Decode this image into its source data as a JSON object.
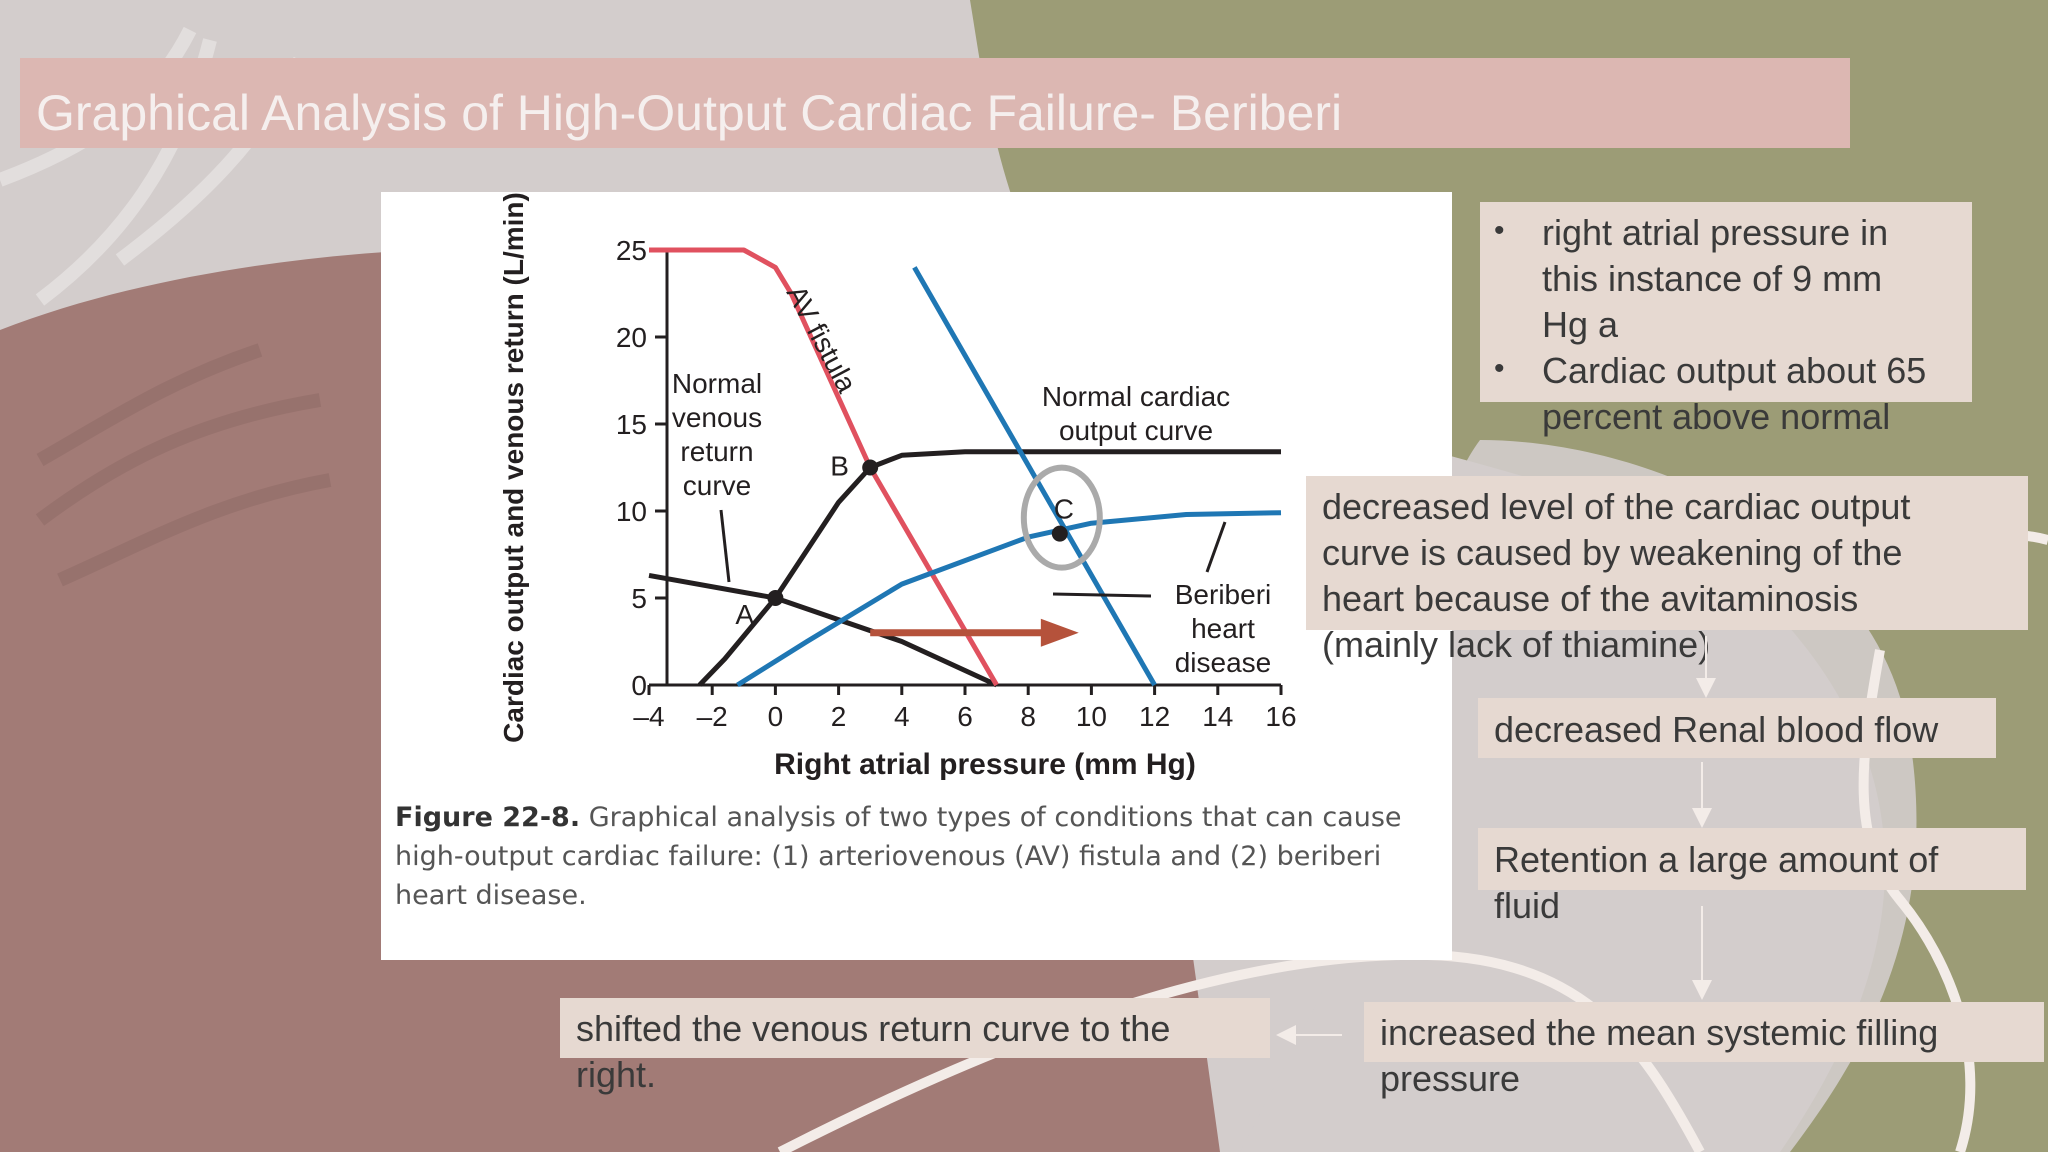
{
  "slide": {
    "title": "Graphical Analysis of High-Output Cardiac Failure- Beriberi",
    "colors": {
      "olive": "#9c9c76",
      "mauve": "#a27b76",
      "title_band": "#dcb7b2",
      "box": "#e6d9d1"
    }
  },
  "figure": {
    "caption_bold": "Figure 22-8.",
    "caption_text": "Graphical analysis of two types of conditions that can cause high-output cardiac failure: (1) arteriovenous (AV) fistula and (2) beriberi heart disease.",
    "annotations": {
      "normal_venous": [
        "Normal",
        "venous",
        "return",
        "curve"
      ],
      "av_fistula": "AV fistula",
      "normal_cardiac": [
        "Normal cardiac",
        "output curve"
      ],
      "beriberi": [
        "Beriberi",
        "heart",
        "disease"
      ],
      "point_a": "A",
      "point_b": "B",
      "point_c": "C"
    }
  },
  "chart_data": {
    "type": "line",
    "title": "",
    "xlabel": "Right atrial pressure (mm Hg)",
    "ylabel": "Cardiac output and venous return (L/min)",
    "xlim": [
      -4,
      16
    ],
    "ylim": [
      0,
      25
    ],
    "x_ticks": [
      "–4",
      "–2",
      "0",
      "2",
      "4",
      "6",
      "8",
      "10",
      "12",
      "14",
      "16"
    ],
    "y_ticks": [
      "0",
      "5",
      "10",
      "15",
      "20",
      "25"
    ],
    "series": [
      {
        "color": "#231f20",
        "points": [
          [
            -2.4,
            0
          ],
          [
            -1.6,
            1.5
          ],
          [
            0,
            5
          ],
          [
            2,
            10.5
          ],
          [
            3,
            12.5
          ],
          [
            4,
            13.2
          ],
          [
            6,
            13.4
          ],
          [
            16,
            13.4
          ]
        ]
      },
      {
        "color": "#231f20",
        "points": [
          [
            -4,
            6.3
          ],
          [
            0,
            5
          ],
          [
            4,
            2.5
          ],
          [
            7,
            0
          ]
        ]
      },
      {
        "color": "#e0515f",
        "points": [
          [
            -4,
            25
          ],
          [
            -1,
            25
          ],
          [
            0,
            24
          ],
          [
            0.5,
            22.5
          ],
          [
            3,
            12.5
          ],
          [
            7,
            0
          ]
        ]
      },
      {
        "color": "#1f77b4",
        "points": [
          [
            4.4,
            24
          ],
          [
            12,
            0
          ]
        ]
      },
      {
        "color": "#1f77b4",
        "points": [
          [
            -1.2,
            0
          ],
          [
            1,
            2.5
          ],
          [
            4,
            5.8
          ],
          [
            8,
            8.5
          ],
          [
            10,
            9.3
          ],
          [
            13,
            9.8
          ],
          [
            16,
            9.9
          ]
        ]
      }
    ],
    "points": [
      {
        "label": "A",
        "x": 0,
        "y": 5
      },
      {
        "label": "B",
        "x": 3,
        "y": 12.5
      },
      {
        "label": "C",
        "x": 9,
        "y": 8.7
      }
    ]
  },
  "boxes": {
    "bullet1": [
      "right atrial pressure in",
      "this instance of 9 mm",
      "Hg a"
    ],
    "bullet2": [
      "Cardiac output about 65",
      "percent above normal"
    ],
    "decreased": [
      "decreased level of the cardiac output",
      "curve is caused by weakening of the",
      "heart because of the avitaminosis",
      "(mainly lack of thiamine)"
    ],
    "renal": "decreased Renal  blood flow",
    "retention": [
      "Retention  a large amount of",
      "fluid"
    ],
    "filling": [
      "increased the mean systemic filling",
      "pressure"
    ],
    "shifted": [
      "shifted the venous return curve to the",
      "right."
    ]
  }
}
